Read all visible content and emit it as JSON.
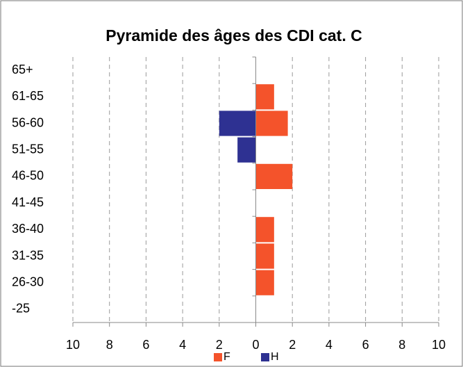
{
  "chart_data": {
    "type": "bar",
    "orientation": "horizontal",
    "title": "Pyramide des âges des CDI cat. C",
    "categories": [
      "65+",
      "61-65",
      "56-60",
      "51-55",
      "46-50",
      "41-45",
      "36-40",
      "31-35",
      "26-30",
      "-25"
    ],
    "series": [
      {
        "name": "F",
        "color": "#f4532b",
        "values": [
          0,
          1,
          1.75,
          0,
          2,
          0,
          1,
          1,
          1,
          0
        ]
      },
      {
        "name": "H",
        "color": "#2e3192",
        "values": [
          0,
          0,
          -2,
          -1,
          0,
          0,
          0,
          0,
          0,
          0
        ]
      }
    ],
    "xlim": [
      -10,
      10
    ],
    "xticks": [
      {
        "value": -10,
        "label": "10"
      },
      {
        "value": -8,
        "label": "8"
      },
      {
        "value": -6,
        "label": "6"
      },
      {
        "value": -4,
        "label": "4"
      },
      {
        "value": -2,
        "label": "2"
      },
      0,
      2,
      4,
      6,
      8,
      10
    ],
    "grid": true,
    "legend": "bottom"
  }
}
